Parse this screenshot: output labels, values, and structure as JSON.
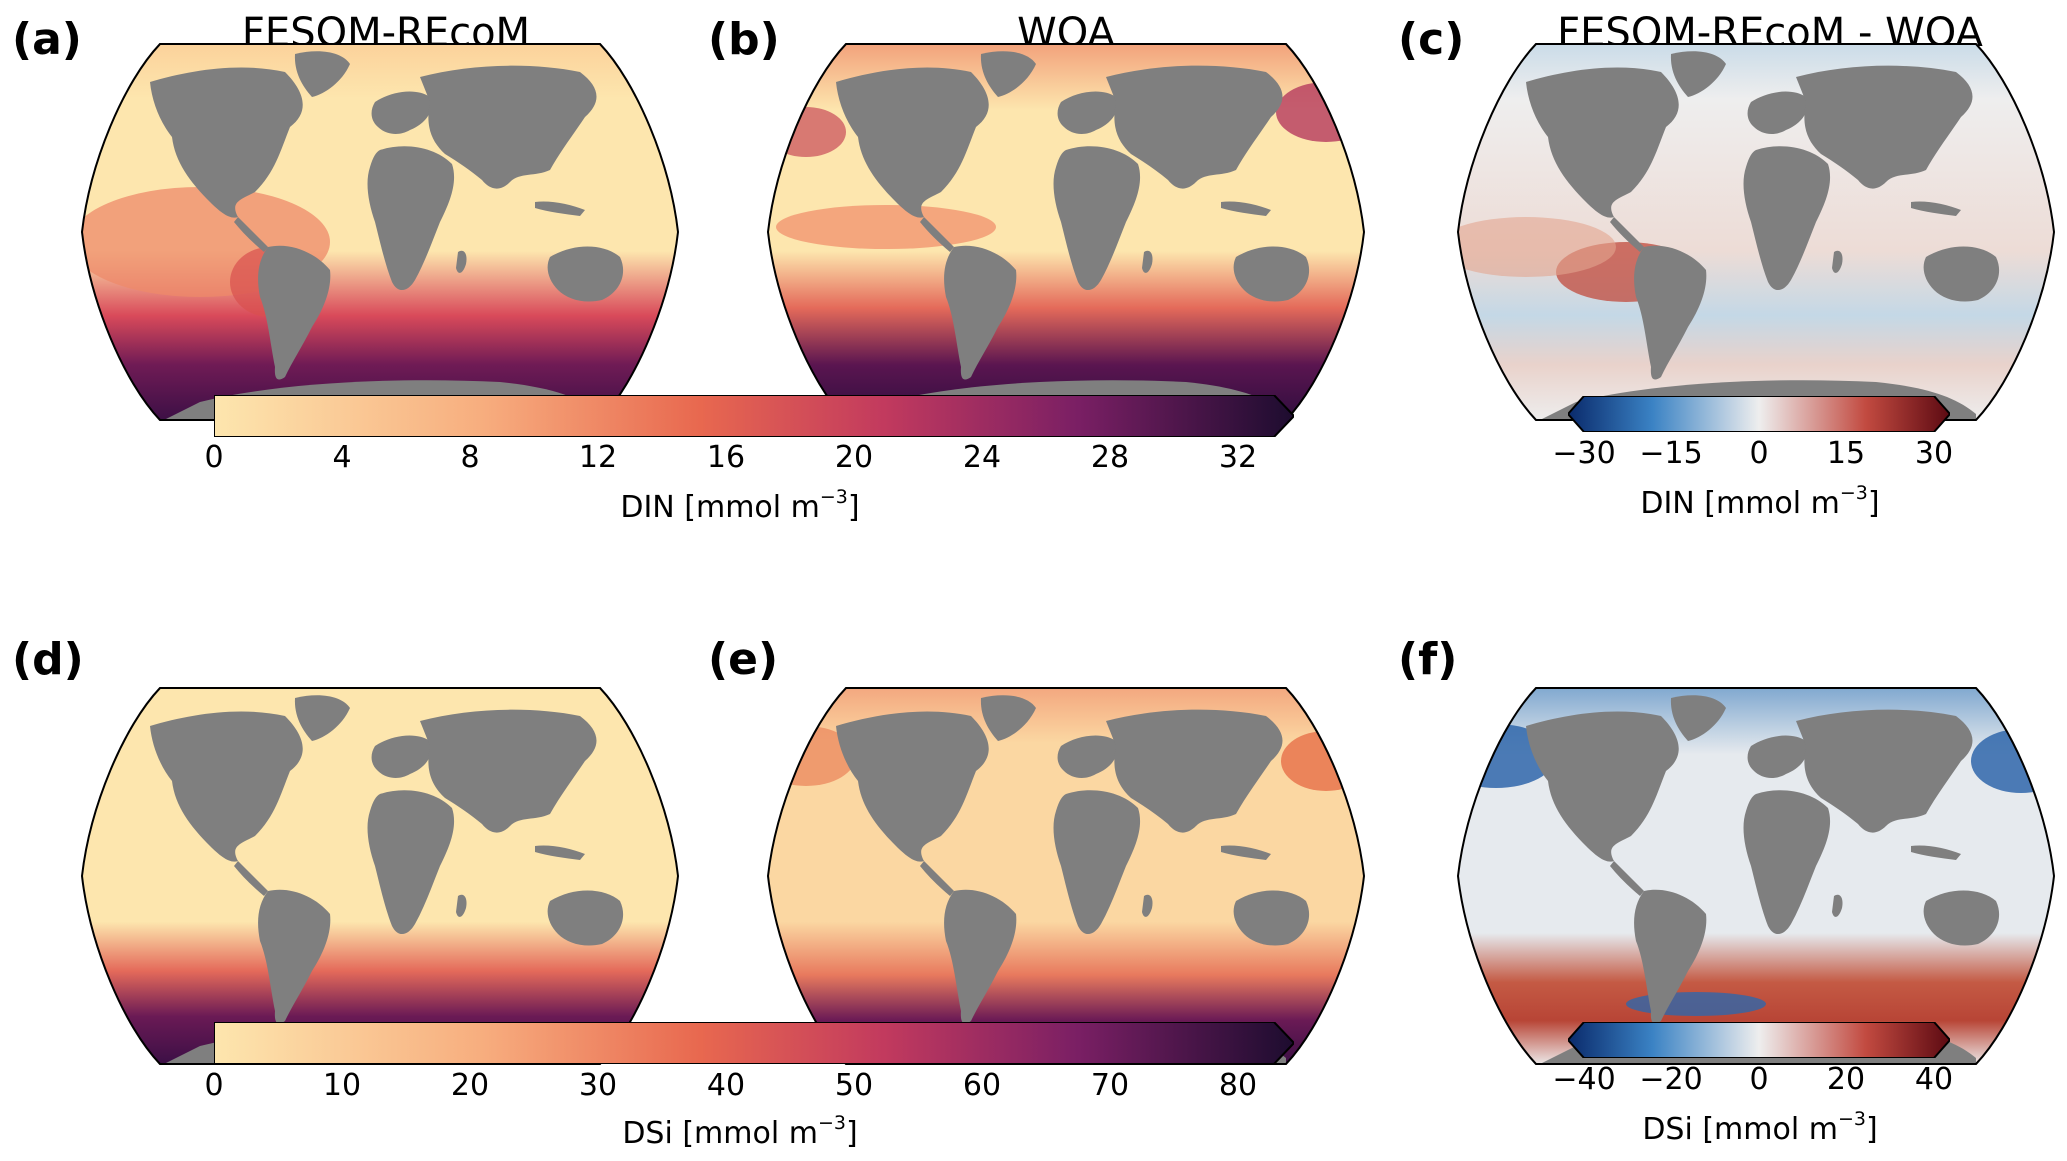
{
  "panels": [
    {
      "letter": "(a)",
      "title": "FESOM-REcoM",
      "field": "din",
      "source": "model"
    },
    {
      "letter": "(b)",
      "title": "WOA",
      "field": "din",
      "source": "obs"
    },
    {
      "letter": "(c)",
      "title": "FESOM-REcoM - WOA",
      "field": "din",
      "source": "diff"
    },
    {
      "letter": "(d)",
      "title": "",
      "field": "dsi",
      "source": "model"
    },
    {
      "letter": "(e)",
      "title": "",
      "field": "dsi",
      "source": "obs"
    },
    {
      "letter": "(f)",
      "title": "",
      "field": "dsi",
      "source": "diff"
    }
  ],
  "colorbars": {
    "din_abs": {
      "ticks": [
        "0",
        "4",
        "8",
        "12",
        "16",
        "20",
        "24",
        "28",
        "32"
      ],
      "label_main": "DIN [mmol m",
      "label_exp": "−3",
      "label_end": "]",
      "range": [
        0,
        32
      ]
    },
    "din_diff": {
      "ticks": [
        "−30",
        "−15",
        "0",
        "15",
        "30"
      ],
      "label_main": "DIN [mmol m",
      "label_exp": "−3",
      "label_end": "]",
      "range": [
        -30,
        30
      ]
    },
    "dsi_abs": {
      "ticks": [
        "0",
        "10",
        "20",
        "30",
        "40",
        "50",
        "60",
        "70",
        "80"
      ],
      "label_main": "DSi [mmol m",
      "label_exp": "−3",
      "label_end": "]",
      "range": [
        0,
        80
      ]
    },
    "dsi_diff": {
      "ticks": [
        "−40",
        "−20",
        "0",
        "20",
        "40"
      ],
      "label_main": "DSi [mmol m",
      "label_exp": "−3",
      "label_end": "]",
      "range": [
        -40,
        40
      ]
    }
  },
  "colors": {
    "land": "#7f7f7f",
    "seq_low": "#fde6ae",
    "seq_mid": "#e8684f",
    "seq_high": "#2b0f3a",
    "div_neg": "#0a2a6b",
    "div_zero": "#eeeeee",
    "div_pos": "#5c0a12"
  }
}
